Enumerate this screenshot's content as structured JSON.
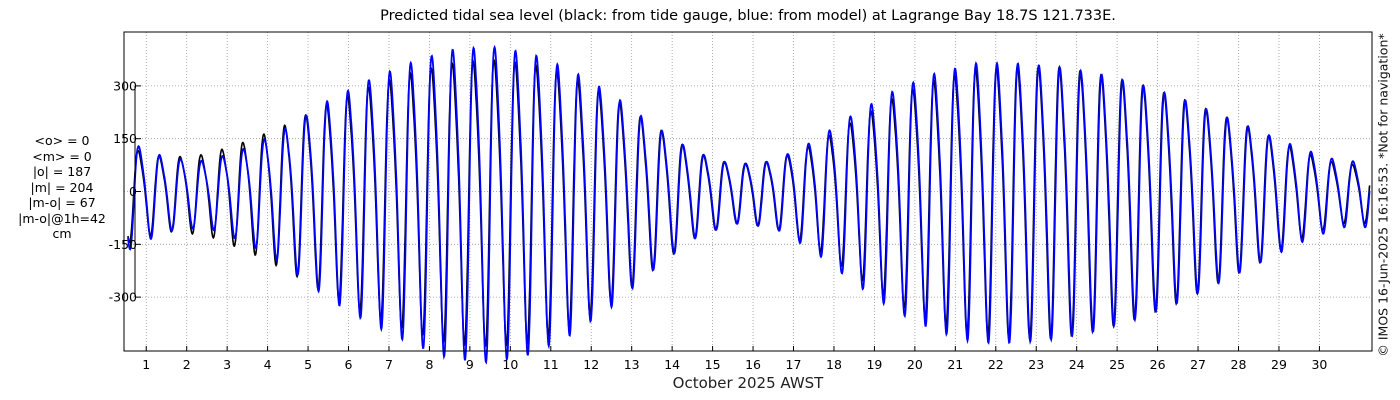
{
  "chart_data": {
    "type": "line",
    "title": "Predicted tidal sea level (black: from tide gauge, blue: from model) at Lagrange Bay 18.7S 121.733E.",
    "xlabel": "October 2025 AWST",
    "ylabel": "",
    "x_ticks": [
      "1",
      "2",
      "3",
      "4",
      "5",
      "6",
      "7",
      "8",
      "9",
      "10",
      "11",
      "12",
      "13",
      "14",
      "15",
      "16",
      "17",
      "18",
      "19",
      "20",
      "21",
      "22",
      "23",
      "24",
      "25",
      "26",
      "27",
      "28",
      "29",
      "30"
    ],
    "y_ticks": [
      "300",
      "150",
      "0",
      "-150",
      "-300"
    ],
    "y_tick_values": [
      300,
      150,
      0,
      -150,
      -300
    ],
    "xlim": [
      0.45,
      31.3
    ],
    "ylim": [
      -453,
      453
    ],
    "grid": true,
    "colors": {
      "observed": "#000000",
      "model": "#0000ff",
      "grid": "#999999"
    },
    "series": [
      {
        "name": "black: from tide gauge",
        "color": "#000000",
        "amplitude_envelope": {
          "day": [
            0.5,
            1.5,
            2.5,
            3.5,
            4.5,
            5.5,
            6.5,
            7.5,
            8.5,
            9.5,
            10.5,
            11.5,
            12.5,
            13.5,
            14.5,
            15.5,
            16.5,
            17.5,
            18.5,
            19.5,
            20.5,
            21.5,
            22.5,
            23.5,
            24.5,
            25.5,
            26.5,
            27.5,
            28.5,
            29.5,
            30.5
          ],
          "cm": [
            130,
            100,
            110,
            150,
            200,
            260,
            310,
            350,
            380,
            390,
            380,
            340,
            280,
            200,
            120,
            80,
            90,
            140,
            210,
            280,
            330,
            360,
            370,
            370,
            350,
            320,
            280,
            230,
            180,
            120,
            80
          ]
        }
      },
      {
        "name": "blue: from model",
        "color": "#0000ff",
        "amplitude_envelope": {
          "day": [
            0.5,
            1.5,
            2.5,
            3.5,
            4.5,
            5.5,
            6.5,
            7.5,
            8.5,
            9.5,
            10.5,
            11.5,
            12.5,
            13.5,
            14.5,
            15.5,
            16.5,
            17.5,
            18.5,
            19.5,
            20.5,
            21.5,
            22.5,
            23.5,
            24.5,
            25.5,
            26.5,
            27.5,
            28.5,
            29.5,
            30.5
          ],
          "cm": [
            150,
            100,
            90,
            130,
            190,
            270,
            330,
            380,
            420,
            430,
            410,
            360,
            290,
            200,
            120,
            80,
            90,
            150,
            230,
            300,
            350,
            380,
            380,
            370,
            350,
            320,
            280,
            230,
            180,
            130,
            90
          ]
        }
      }
    ]
  },
  "stats": {
    "lines": [
      "<o> = 0",
      "<m> = 0",
      "|o| = 187",
      "|m| = 204",
      "|m-o| = 67",
      "|m-o|@1h=42",
      "cm"
    ]
  },
  "credit": "© IMOS 16-Jun-2025 16:16:53. *Not for navigation*"
}
